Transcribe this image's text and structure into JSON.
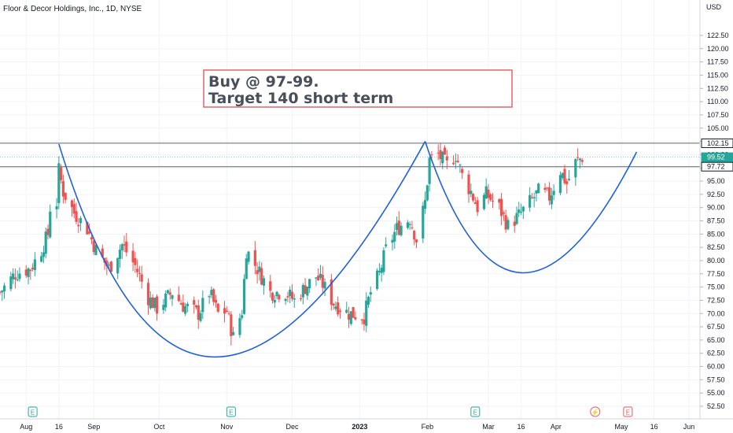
{
  "header": {
    "symbol_title": "Floor & Decor Holdings, Inc., 1D, NYSE"
  },
  "annotation": {
    "line1": "Buy @ 97-99.",
    "line2": "Target 140 short term",
    "border_color": "#e05a5f"
  },
  "price_tags": {
    "resistance": "102.15",
    "last_price": "99.52",
    "countdown": "06:00:01",
    "support": "97.72"
  },
  "colors": {
    "up": "#26a69a",
    "down": "#ef5350",
    "pattern_line": "#1f5fd8",
    "level_line": "#5d606b",
    "last_tag": "#26a69a",
    "event_earnings": "#26a69a",
    "event_dividend": "#e05a5f"
  },
  "events": [
    {
      "label": "E",
      "icon": "earnings-icon",
      "date": "2022-08-04"
    },
    {
      "label": "E",
      "icon": "earnings-icon",
      "date": "2022-11-03"
    },
    {
      "label": "E",
      "icon": "earnings-icon",
      "date": "2023-02-23"
    },
    {
      "label": "⚡",
      "icon": "split-icon",
      "date": "2023-04-19"
    },
    {
      "label": "E",
      "icon": "earnings-icon",
      "date": "2023-05-04"
    }
  ],
  "chart_data": {
    "type": "candlestick",
    "title": "Floor & Decor Holdings, Inc., 1D, NYSE",
    "y_axis": {
      "unit": "USD",
      "ylim": [
        50.0,
        125.0
      ],
      "ticks": [
        "52.50",
        "55.00",
        "57.50",
        "60.00",
        "62.50",
        "65.00",
        "67.50",
        "70.00",
        "72.50",
        "75.00",
        "77.50",
        "80.00",
        "82.50",
        "85.00",
        "87.50",
        "90.00",
        "92.50",
        "95.00",
        "97.50",
        "100.00",
        "102.50",
        "105.00",
        "107.50",
        "110.00",
        "112.50",
        "115.00",
        "117.50",
        "120.00",
        "122.50"
      ]
    },
    "x_axis": {
      "ticks": [
        {
          "label": "Aug",
          "date": "2022-08-01"
        },
        {
          "label": "16",
          "date": "2022-08-16"
        },
        {
          "label": "Sep",
          "date": "2022-09-01"
        },
        {
          "label": "Oct",
          "date": "2022-10-01"
        },
        {
          "label": "Nov",
          "date": "2022-11-01"
        },
        {
          "label": "Dec",
          "date": "2022-12-01"
        },
        {
          "label": "2023",
          "date": "2023-01-01",
          "bold": true
        },
        {
          "label": "Feb",
          "date": "2023-02-01"
        },
        {
          "label": "Mar",
          "date": "2023-03-01"
        },
        {
          "label": "16",
          "date": "2023-03-16"
        },
        {
          "label": "Apr",
          "date": "2023-04-01"
        },
        {
          "label": "May",
          "date": "2023-05-01"
        },
        {
          "label": "16",
          "date": "2023-05-16"
        },
        {
          "label": "Jun",
          "date": "2023-06-01"
        }
      ]
    },
    "levels": [
      102.15,
      99.52,
      97.72
    ],
    "ohlc_anchors": [
      [
        "2022-07-20",
        74.0
      ],
      [
        "2022-07-27",
        77.5
      ],
      [
        "2022-08-03",
        78.5
      ],
      [
        "2022-08-08",
        82.0
      ],
      [
        "2022-08-11",
        85.0
      ],
      [
        "2022-08-12",
        90.0
      ],
      [
        "2022-08-15",
        91.0
      ],
      [
        "2022-08-16",
        97.0
      ],
      [
        "2022-08-18",
        93.0
      ],
      [
        "2022-08-23",
        89.0
      ],
      [
        "2022-08-29",
        86.0
      ],
      [
        "2022-09-02",
        82.0
      ],
      [
        "2022-09-08",
        78.5
      ],
      [
        "2022-09-14",
        83.0
      ],
      [
        "2022-09-20",
        79.0
      ],
      [
        "2022-09-26",
        73.0
      ],
      [
        "2022-09-30",
        71.0
      ],
      [
        "2022-10-07",
        74.0
      ],
      [
        "2022-10-12",
        71.5
      ],
      [
        "2022-10-19",
        70.0
      ],
      [
        "2022-10-24",
        74.0
      ],
      [
        "2022-10-28",
        70.0
      ],
      [
        "2022-11-01",
        70.5
      ],
      [
        "2022-11-04",
        65.5
      ],
      [
        "2022-11-08",
        70.5
      ],
      [
        "2022-11-10",
        82.0
      ],
      [
        "2022-11-15",
        78.5
      ],
      [
        "2022-11-21",
        74.0
      ],
      [
        "2022-11-28",
        74.0
      ],
      [
        "2022-12-02",
        72.5
      ],
      [
        "2022-12-07",
        75.0
      ],
      [
        "2022-12-12",
        77.0
      ],
      [
        "2022-12-15",
        75.5
      ],
      [
        "2022-12-20",
        72.0
      ],
      [
        "2022-12-27",
        70.0
      ],
      [
        "2023-01-03",
        69.5
      ],
      [
        "2023-01-06",
        74.0
      ],
      [
        "2023-01-10",
        77.5
      ],
      [
        "2023-01-13",
        82.0
      ],
      [
        "2023-01-18",
        86.0
      ],
      [
        "2023-01-24",
        88.0
      ],
      [
        "2023-01-27",
        84.0
      ],
      [
        "2023-01-31",
        91.0
      ],
      [
        "2023-02-02",
        99.0
      ],
      [
        "2023-02-06",
        100.0
      ],
      [
        "2023-02-10",
        98.0
      ],
      [
        "2023-02-14",
        100.0
      ],
      [
        "2023-02-17",
        96.0
      ],
      [
        "2023-02-21",
        93.0
      ],
      [
        "2023-02-24",
        90.0
      ],
      [
        "2023-02-28",
        92.5
      ],
      [
        "2023-03-06",
        90.0
      ],
      [
        "2023-03-10",
        86.5
      ],
      [
        "2023-03-15",
        88.5
      ],
      [
        "2023-03-20",
        91.0
      ],
      [
        "2023-03-24",
        93.0
      ],
      [
        "2023-03-29",
        92.0
      ],
      [
        "2023-04-03",
        97.0
      ],
      [
        "2023-04-06",
        94.5
      ],
      [
        "2023-04-10",
        98.5
      ],
      [
        "2023-04-13",
        99.5
      ]
    ],
    "pattern_curves": [
      {
        "name": "",
        "points": [
          [
            "2022-08-16",
            102.0
          ],
          [
            "2022-10-27",
            61.8
          ],
          [
            "2023-01-31",
            102.5
          ]
        ]
      },
      {
        "name": "",
        "points": [
          [
            "2023-01-31",
            102.5
          ],
          [
            "2023-03-16",
            77.7
          ],
          [
            "2023-05-08",
            100.5
          ]
        ]
      }
    ]
  }
}
